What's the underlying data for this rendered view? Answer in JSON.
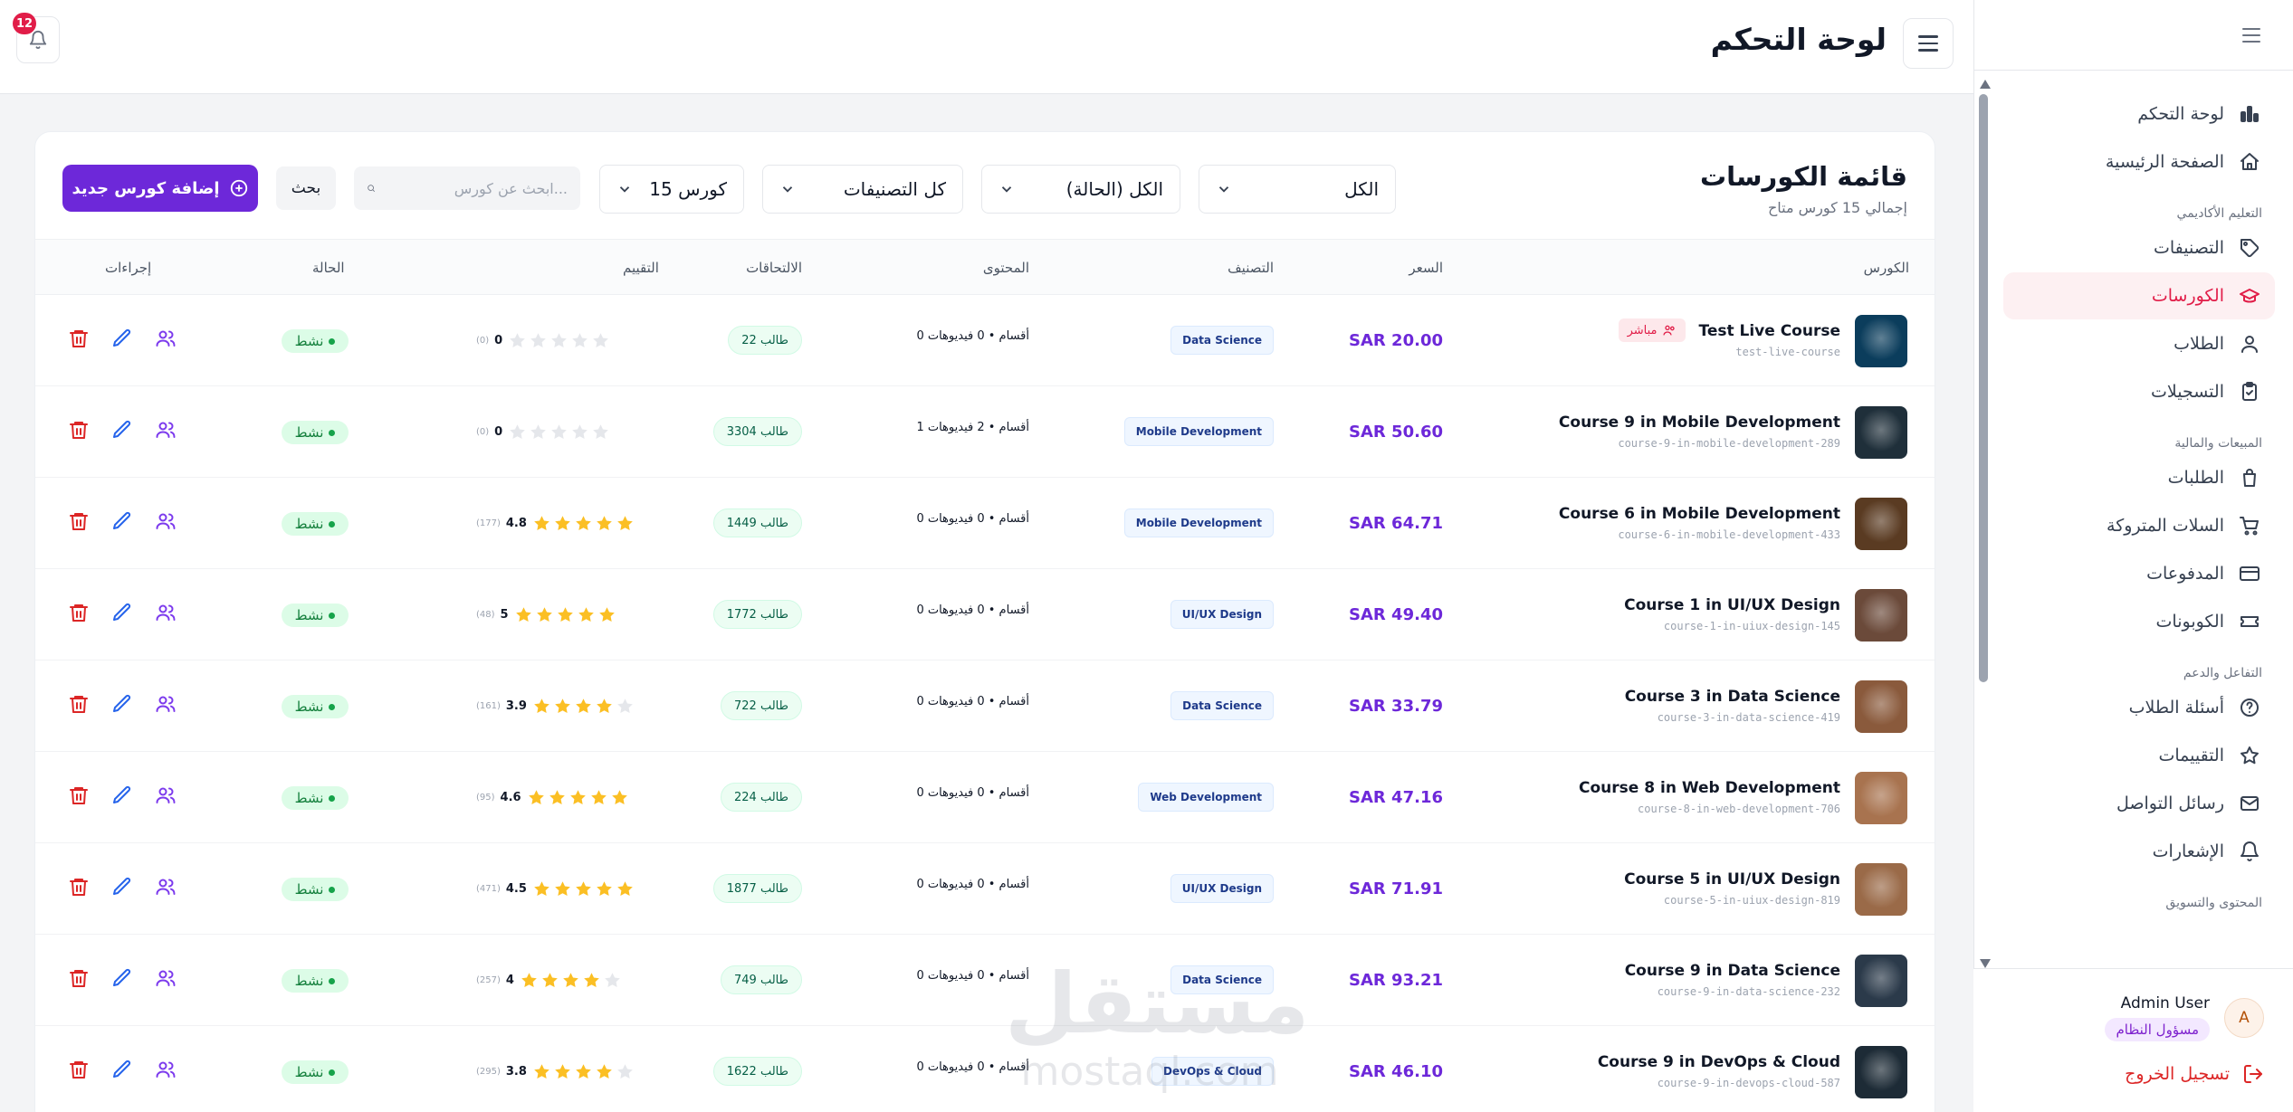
{
  "header": {
    "title": "لوحة التحكم",
    "notifications_count": "12"
  },
  "sidebar": {
    "nav": [
      {
        "label": "لوحة التحكم",
        "icon": "bar-chart-icon"
      },
      {
        "label": "الصفحة الرئيسية",
        "icon": "home-icon"
      }
    ],
    "sections": [
      {
        "title": "التعليم الأكاديمي",
        "items": [
          {
            "label": "التصنيفات",
            "icon": "tag-icon"
          },
          {
            "label": "الكورسات",
            "icon": "graduation-cap-icon",
            "active": true
          },
          {
            "label": "الطلاب",
            "icon": "user-icon"
          },
          {
            "label": "التسجيلات",
            "icon": "clipboard-icon"
          }
        ]
      },
      {
        "title": "المبيعات والمالية",
        "items": [
          {
            "label": "الطلبات",
            "icon": "shopping-bag-icon"
          },
          {
            "label": "السلات المتروكة",
            "icon": "cart-icon"
          },
          {
            "label": "المدفوعات",
            "icon": "credit-card-icon"
          },
          {
            "label": "الكوبونات",
            "icon": "ticket-icon"
          }
        ]
      },
      {
        "title": "التفاعل والدعم",
        "items": [
          {
            "label": "أسئلة الطلاب",
            "icon": "help-circle-icon"
          },
          {
            "label": "التقييمات",
            "icon": "star-icon"
          },
          {
            "label": "رسائل التواصل",
            "icon": "mail-icon"
          },
          {
            "label": "الإشعارات",
            "icon": "bell-icon"
          }
        ]
      },
      {
        "title": "المحتوى والتسويق",
        "items": []
      }
    ],
    "user": {
      "initial": "A",
      "name": "Admin User",
      "role": "مسؤول النظام"
    },
    "logout_label": "تسجيل الخروج"
  },
  "card": {
    "title": "قائمة الكورسات",
    "subtitle": "إجمالي 15 كورس متاح",
    "filters": {
      "type": "الكل",
      "status": "الكل (الحالة)",
      "category": "كل التصنيفات",
      "per_page": "15 كورس"
    },
    "search_placeholder": "ابحث عن كورس...",
    "search_button": "بحث",
    "add_button": "إضافة كورس جديد"
  },
  "table": {
    "headers": {
      "course": "الكورس",
      "price": "السعر",
      "category": "التصنيف",
      "content": "المحتوى",
      "enrollments": "الالتحاقات",
      "rating": "التقييم",
      "status": "الحالة",
      "actions": "إجراءات"
    },
    "rows": [
      {
        "title": "Test Live Course",
        "slug": "test-live-course",
        "live": "مباشر",
        "price": "SAR 20.00",
        "category": "Data Science",
        "content": "0 أقسام • 0 فيديوهات",
        "enrollments": "22 طالب",
        "rating": 0,
        "rating_label": "0",
        "rating_count": "(0)",
        "status": "نشط",
        "thumb_color": "#0b3d5c"
      },
      {
        "title": "Course 9 in Mobile Development",
        "slug": "course-9-in-mobile-development-289",
        "price": "SAR 50.60",
        "category": "Mobile Development",
        "content": "1 أقسام • 2 فيديوهات",
        "enrollments": "3304 طالب",
        "rating": 0,
        "rating_label": "0",
        "rating_count": "(0)",
        "status": "نشط",
        "thumb_color": "#1f2f3a"
      },
      {
        "title": "Course 6 in Mobile Development",
        "slug": "course-6-in-mobile-development-433",
        "price": "SAR 64.71",
        "category": "Mobile Development",
        "content": "0 أقسام • 0 فيديوهات",
        "enrollments": "1449 طالب",
        "rating": 5,
        "rating_label": "4.8",
        "rating_count": "(177)",
        "status": "نشط",
        "thumb_color": "#5a3b22"
      },
      {
        "title": "Course 1 in UI/UX Design",
        "slug": "course-1-in-uiux-design-145",
        "price": "SAR 49.40",
        "category": "UI/UX Design",
        "content": "0 أقسام • 0 فيديوهات",
        "enrollments": "1772 طالب",
        "rating": 5,
        "rating_label": "5",
        "rating_count": "(48)",
        "status": "نشط",
        "thumb_color": "#6b4a3a"
      },
      {
        "title": "Course 3 in Data Science",
        "slug": "course-3-in-data-science-419",
        "price": "SAR 33.79",
        "category": "Data Science",
        "content": "0 أقسام • 0 فيديوهات",
        "enrollments": "722 طالب",
        "rating": 4,
        "rating_label": "3.9",
        "rating_count": "(161)",
        "status": "نشط",
        "thumb_color": "#8a5a3c"
      },
      {
        "title": "Course 8 in Web Development",
        "slug": "course-8-in-web-development-706",
        "price": "SAR 47.16",
        "category": "Web Development",
        "content": "0 أقسام • 0 فيديوهات",
        "enrollments": "224 طالب",
        "rating": 5,
        "rating_label": "4.6",
        "rating_count": "(95)",
        "status": "نشط",
        "thumb_color": "#a8734f"
      },
      {
        "title": "Course 5 in UI/UX Design",
        "slug": "course-5-in-uiux-design-819",
        "price": "SAR 71.91",
        "category": "UI/UX Design",
        "content": "0 أقسام • 0 فيديوهات",
        "enrollments": "1877 طالب",
        "rating": 5,
        "rating_label": "4.5",
        "rating_count": "(471)",
        "status": "نشط",
        "thumb_color": "#9a6a48"
      },
      {
        "title": "Course 9 in Data Science",
        "slug": "course-9-in-data-science-232",
        "price": "SAR 93.21",
        "category": "Data Science",
        "content": "0 أقسام • 0 فيديوهات",
        "enrollments": "749 طالب",
        "rating": 4,
        "rating_label": "4",
        "rating_count": "(257)",
        "status": "نشط",
        "thumb_color": "#2b3a4a"
      },
      {
        "title": "Course 9 in DevOps & Cloud",
        "slug": "course-9-in-devops-cloud-587",
        "price": "SAR 46.10",
        "category": "DevOps & Cloud",
        "content": "0 أقسام • 0 فيديوهات",
        "enrollments": "1622 طالب",
        "rating": 4,
        "rating_label": "3.8",
        "rating_count": "(295)",
        "status": "نشط",
        "thumb_color": "#1d2b36"
      }
    ]
  },
  "watermark": {
    "line1": "مستقل",
    "line2": "mostaql.com"
  },
  "colors": {
    "accent": "#6d28d9",
    "active_nav": "#e11d48",
    "status_green": "#15803d",
    "star": "#fbbf24"
  }
}
